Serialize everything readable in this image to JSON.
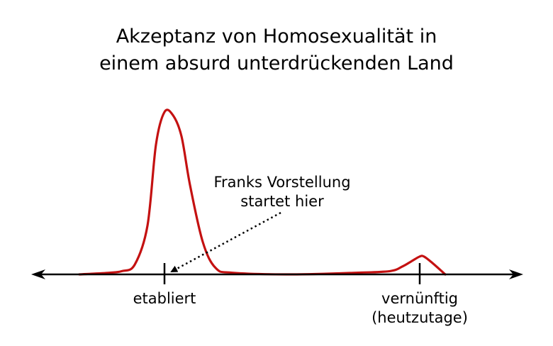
{
  "chart_data": {
    "type": "line",
    "title_lines": [
      "Akzeptanz von Homosexualität in",
      "einem absurd unterdrückenden Land"
    ],
    "xlabel": "",
    "ylabel": "",
    "grid": false,
    "legend": "none",
    "colors": {
      "curve": "#c41111",
      "axis": "#000000"
    },
    "x_ticks": [
      {
        "x": 0.2,
        "label_lines": [
          "etabliert"
        ]
      },
      {
        "x": 0.8,
        "label_lines": [
          "vernünftig",
          "(heutzutage)"
        ]
      }
    ],
    "xlim": [
      0,
      1
    ],
    "ylim": [
      0,
      1
    ],
    "series": [
      {
        "x": [
          0.0,
          0.07,
          0.1,
          0.13,
          0.16,
          0.18,
          0.2,
          0.22,
          0.24,
          0.26,
          0.29,
          0.32,
          0.36,
          0.5,
          0.65,
          0.73,
          0.76,
          0.78,
          0.8,
          0.81,
          0.83,
          0.86
        ],
        "y": [
          0.0,
          0.01,
          0.02,
          0.06,
          0.3,
          0.8,
          1.0,
          0.98,
          0.85,
          0.55,
          0.2,
          0.04,
          0.01,
          0.0,
          0.01,
          0.02,
          0.05,
          0.08,
          0.11,
          0.11,
          0.07,
          0.0
        ]
      }
    ],
    "annotations": [
      {
        "text_lines": [
          "Franks Vorstellung",
          "startet hier"
        ],
        "points_to_x": 0.2,
        "arrow_style": "dotted"
      }
    ]
  }
}
